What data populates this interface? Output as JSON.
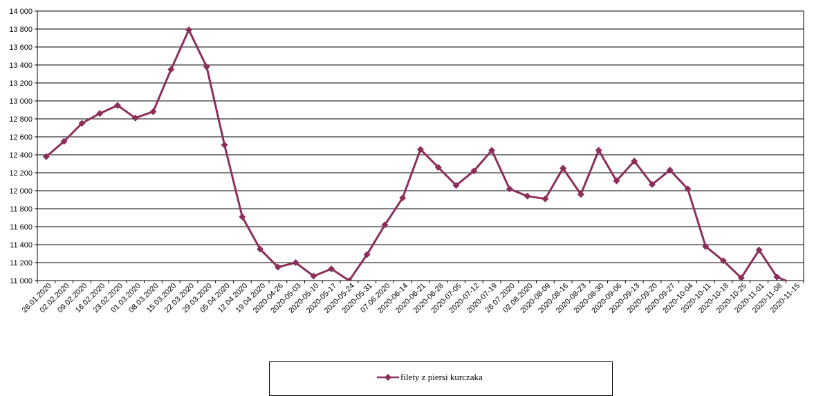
{
  "chart_data": {
    "type": "line",
    "title": "",
    "xlabel": "",
    "ylabel": "",
    "ylim": [
      11000,
      14000
    ],
    "ytick_step": 200,
    "grid": "horizontal",
    "legend_placement": "bottom-center",
    "categories": [
      "26.01.2020",
      "02.02.2020",
      "09.02.2020",
      "16.02.2020",
      "23.02.2020",
      "01.03.2020",
      "08.03.2020",
      "15.03.2020",
      "22.03.2020",
      "29.03.2020",
      "05.04.2020",
      "12.04.2020",
      "19.04.2020",
      "2020-04-26",
      "2020-05-03",
      "2020-05-10",
      "2020-05-17",
      "2020-05-24",
      "2020-05-31",
      "07.06.2020",
      "2020-06-14",
      "2020-06-21",
      "2020-06-28",
      "2020-07-05",
      "2020-07-12",
      "2020-07-19",
      "26.07.2020",
      "02.08.2020",
      "2020-08-09",
      "2020-08-16",
      "2020-08-23",
      "2020-08-30",
      "2020-09-06",
      "2020-09-13",
      "2020-09-20",
      "2020-09-27",
      "2020-10-04",
      "2020-10-11",
      "2020-10-18",
      "2020-10-25",
      "2020-11-01",
      "2020-11-08",
      "2020-11-15"
    ],
    "series": [
      {
        "name": "filety z piersi kurczaka",
        "color": "#8B2F5A",
        "marker": "diamond",
        "values": [
          12380,
          12550,
          12750,
          12860,
          12950,
          12810,
          12880,
          13350,
          13790,
          13380,
          12510,
          11710,
          11350,
          11150,
          11200,
          11050,
          11130,
          11000,
          11290,
          11620,
          11920,
          12460,
          12260,
          12060,
          12220,
          12450,
          12020,
          11940,
          11910,
          12250,
          11960,
          12450,
          12110,
          12330,
          12070,
          12230,
          12020,
          11380,
          11220,
          11030,
          11340,
          11040,
          10960
        ]
      }
    ]
  }
}
